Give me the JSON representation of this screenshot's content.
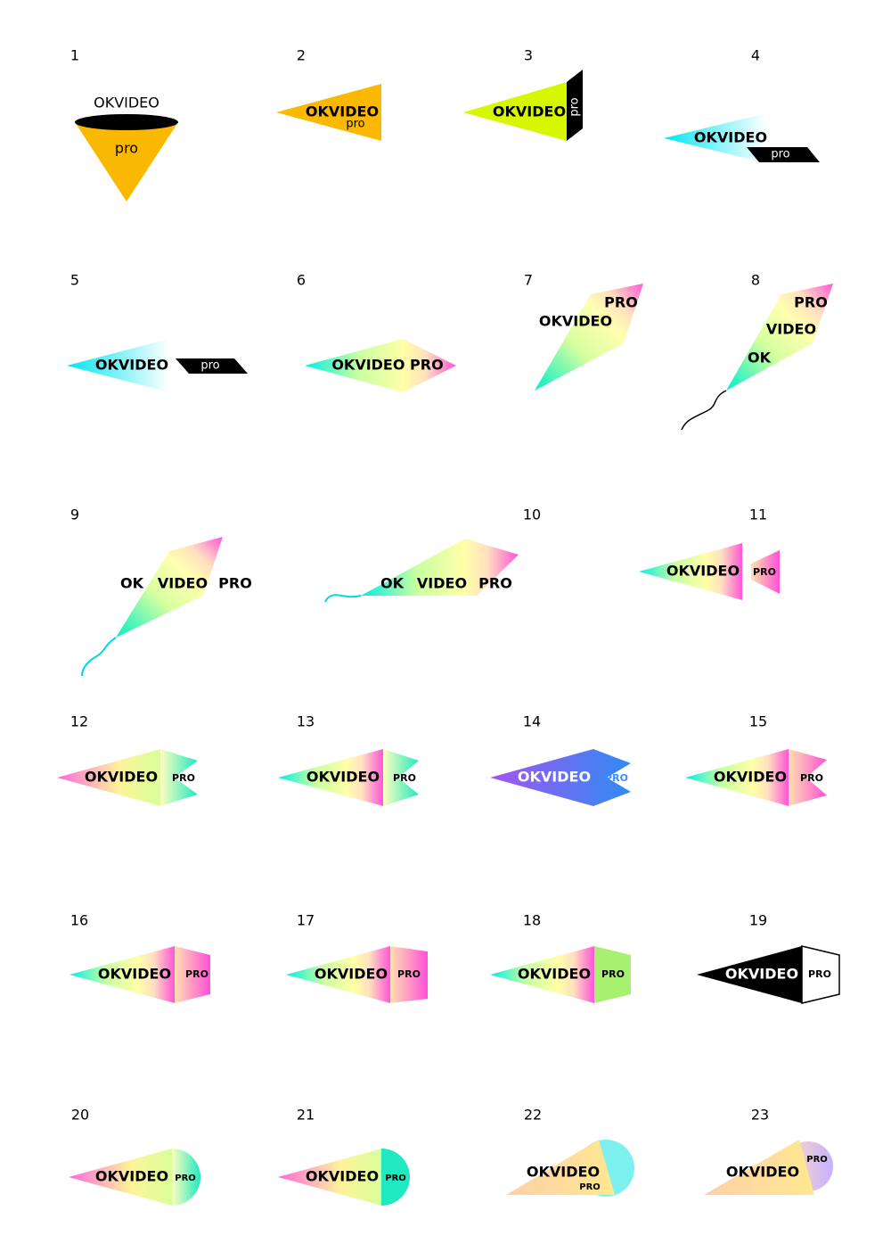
{
  "items": [
    {
      "number": "1",
      "texts": [
        "OKVIDEO",
        "pro"
      ]
    },
    {
      "number": "2",
      "texts": [
        "OKVIDEO",
        "pro"
      ]
    },
    {
      "number": "3",
      "texts": [
        "OKVIDEO",
        "pro"
      ]
    },
    {
      "number": "4",
      "texts": [
        "OKVIDEO",
        "pro"
      ]
    },
    {
      "number": "5",
      "texts": [
        "OKVIDEO",
        "pro"
      ]
    },
    {
      "number": "6",
      "texts": [
        "OKVIDEO PRO"
      ]
    },
    {
      "number": "7",
      "texts": [
        "PRO",
        "OKVIDEO"
      ]
    },
    {
      "number": "8",
      "texts": [
        "PRO",
        "VIDEO",
        "OK"
      ]
    },
    {
      "number": "9",
      "texts": [
        "OK",
        "VIDEO",
        "PRO"
      ]
    },
    {
      "number": "10",
      "texts": [
        "OK",
        "VIDEO",
        "PRO"
      ]
    },
    {
      "number": "11",
      "texts": [
        "OKVIDEO",
        "PRO"
      ]
    },
    {
      "number": "12",
      "texts": [
        "OKVIDEO",
        "PRO"
      ]
    },
    {
      "number": "13",
      "texts": [
        "OKVIDEO",
        "PRO"
      ]
    },
    {
      "number": "14",
      "texts": [
        "OKVIDEO",
        "PRO"
      ]
    },
    {
      "number": "15",
      "texts": [
        "OKVIDEO",
        "PRO"
      ]
    },
    {
      "number": "16",
      "texts": [
        "OKVIDEO",
        "PRO"
      ]
    },
    {
      "number": "17",
      "texts": [
        "OKVIDEO",
        "PRO"
      ]
    },
    {
      "number": "18",
      "texts": [
        "OKVIDEO",
        "PRO"
      ]
    },
    {
      "number": "19",
      "texts": [
        "OKVIDEO",
        "PRO"
      ]
    },
    {
      "number": "20",
      "texts": [
        "OKVIDEO",
        "PRO"
      ]
    },
    {
      "number": "21",
      "texts": [
        "OKVIDEO",
        "PRO"
      ]
    },
    {
      "number": "22",
      "texts": [
        "OKVIDEO",
        "PRO"
      ]
    },
    {
      "number": "23",
      "texts": [
        "OKVIDEO",
        "PRO"
      ]
    }
  ]
}
